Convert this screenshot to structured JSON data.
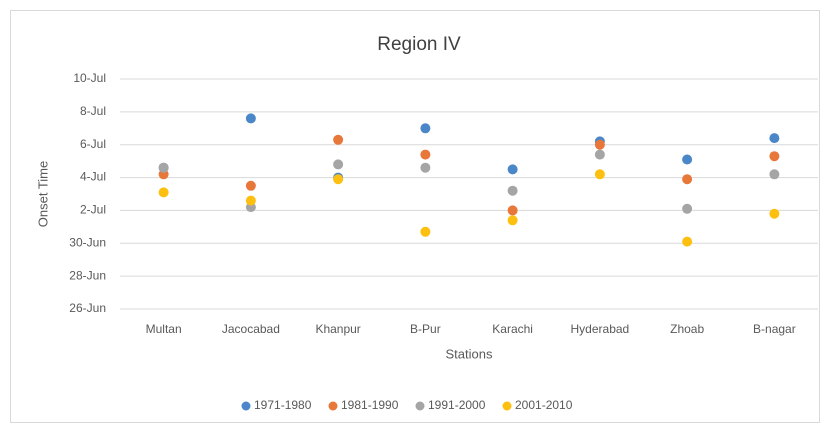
{
  "chart_data": {
    "type": "scatter",
    "title": "Region IV",
    "x_label": "Stations",
    "y_label": "Onset Time",
    "categories": [
      "Multan",
      "Jacocabad",
      "Khanpur",
      "B-Pur",
      "Karachi",
      "Hyderabad",
      "Zhoab",
      "B-nagar"
    ],
    "series": [
      {
        "name": "1971-1980",
        "color": "#4a86c8",
        "values": [
          185.6,
          188.6,
          185.0,
          188.0,
          185.5,
          187.2,
          186.1,
          187.4
        ]
      },
      {
        "name": "1981-1990",
        "color": "#e8773a",
        "values": [
          185.2,
          184.5,
          187.3,
          186.4,
          183.0,
          187.0,
          184.9,
          186.3
        ]
      },
      {
        "name": "1991-2000",
        "color": "#a5a5a5",
        "values": [
          185.6,
          183.2,
          185.8,
          185.6,
          184.2,
          186.4,
          183.1,
          185.2
        ]
      },
      {
        "name": "2001-2010",
        "color": "#fdc010",
        "values": [
          184.1,
          183.6,
          184.9,
          181.7,
          182.4,
          185.2,
          181.1,
          182.8
        ]
      }
    ],
    "ylim": [
      177,
      191
    ],
    "yticks": [
      {
        "value": 177,
        "label": "26-Jun"
      },
      {
        "value": 179,
        "label": "28-Jun"
      },
      {
        "value": 181,
        "label": "30-Jun"
      },
      {
        "value": 183,
        "label": "2-Jul"
      },
      {
        "value": 185,
        "label": "4-Jul"
      },
      {
        "value": 187,
        "label": "6-Jul"
      },
      {
        "value": 189,
        "label": "8-Jul"
      },
      {
        "value": 191,
        "label": "10-Jul"
      }
    ],
    "grid": true,
    "legend": "bottom"
  }
}
